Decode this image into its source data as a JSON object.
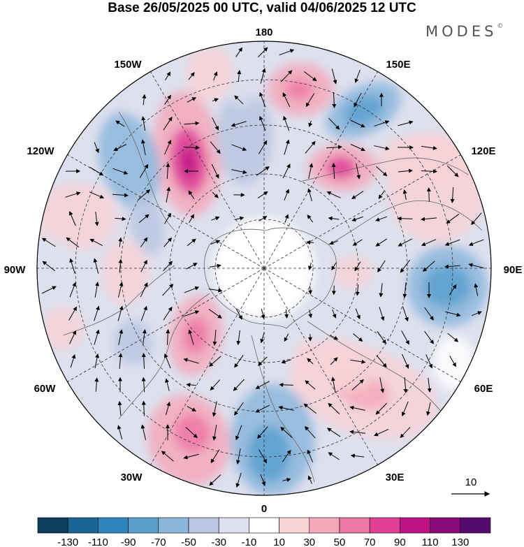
{
  "title": "Base 26/05/2025 00 UTC, valid 04/06/2025 12 UTC",
  "brand": "MODES",
  "brand_mark": "©",
  "longitude_labels": {
    "lon_180": "180",
    "lon_150E": "150E",
    "lon_120E": "120E",
    "lon_90E": "90E",
    "lon_60E": "60E",
    "lon_30E": "30E",
    "lon_0": "0",
    "lon_30W": "30W",
    "lon_60W": "60W",
    "lon_90W": "90W",
    "lon_120W": "120W",
    "lon_150W": "150W"
  },
  "vector_reference": {
    "value": "10"
  },
  "colorbar": {
    "ticks": [
      "-130",
      "-110",
      "-90",
      "-70",
      "-50",
      "-30",
      "-10",
      "10",
      "30",
      "50",
      "70",
      "90",
      "110",
      "130"
    ],
    "colors": [
      "#0d3d5c",
      "#1a6496",
      "#2f86be",
      "#5aa0cf",
      "#8cb6dc",
      "#b9c7e2",
      "#dde0ee",
      "#ffffff",
      "#f8d2d7",
      "#f4a9bb",
      "#ee78a6",
      "#df3f96",
      "#bf1386",
      "#880b78",
      "#560a70"
    ]
  },
  "map_features": [
    "anomaly-shading",
    "wind-vectors",
    "coastlines",
    "latitude-circles",
    "longitude-lines"
  ]
}
